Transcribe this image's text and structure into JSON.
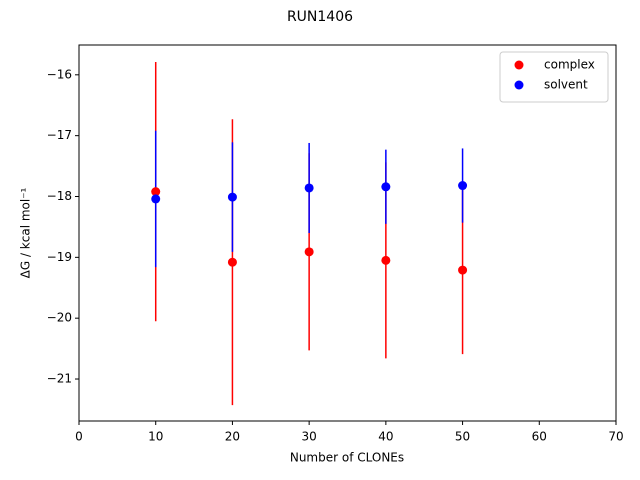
{
  "chart_data": {
    "type": "scatter",
    "title": "RUN1406",
    "x_label": "Number of CLONEs",
    "y_label": "ΔG / kcal mol⁻¹",
    "x": [
      10,
      20,
      30,
      40,
      50
    ],
    "series": [
      {
        "name": "complex",
        "color": "#ff0000",
        "values": [
          -17.92,
          -19.08,
          -18.91,
          -19.05,
          -19.21
        ],
        "errors": [
          2.13,
          2.35,
          1.62,
          1.61,
          1.38
        ]
      },
      {
        "name": "solvent",
        "color": "#0000ff",
        "values": [
          -18.04,
          -18.01,
          -17.86,
          -17.84,
          -17.82
        ],
        "errors": [
          1.12,
          0.9,
          0.74,
          0.61,
          0.61
        ]
      }
    ],
    "xlim": [
      0,
      70
    ],
    "xticks": [
      0,
      10,
      20,
      30,
      40,
      50,
      60,
      70
    ],
    "ylim": [
      -21.69,
      -15.51
    ],
    "yticks": [
      {
        "value": -21,
        "label": "−21"
      },
      {
        "value": -20,
        "label": "−20"
      },
      {
        "value": -19,
        "label": "−19"
      },
      {
        "value": -18,
        "label": "−18"
      },
      {
        "value": -17,
        "label": "−17"
      },
      {
        "value": -16,
        "label": "−16"
      }
    ],
    "legend": "upper right"
  }
}
